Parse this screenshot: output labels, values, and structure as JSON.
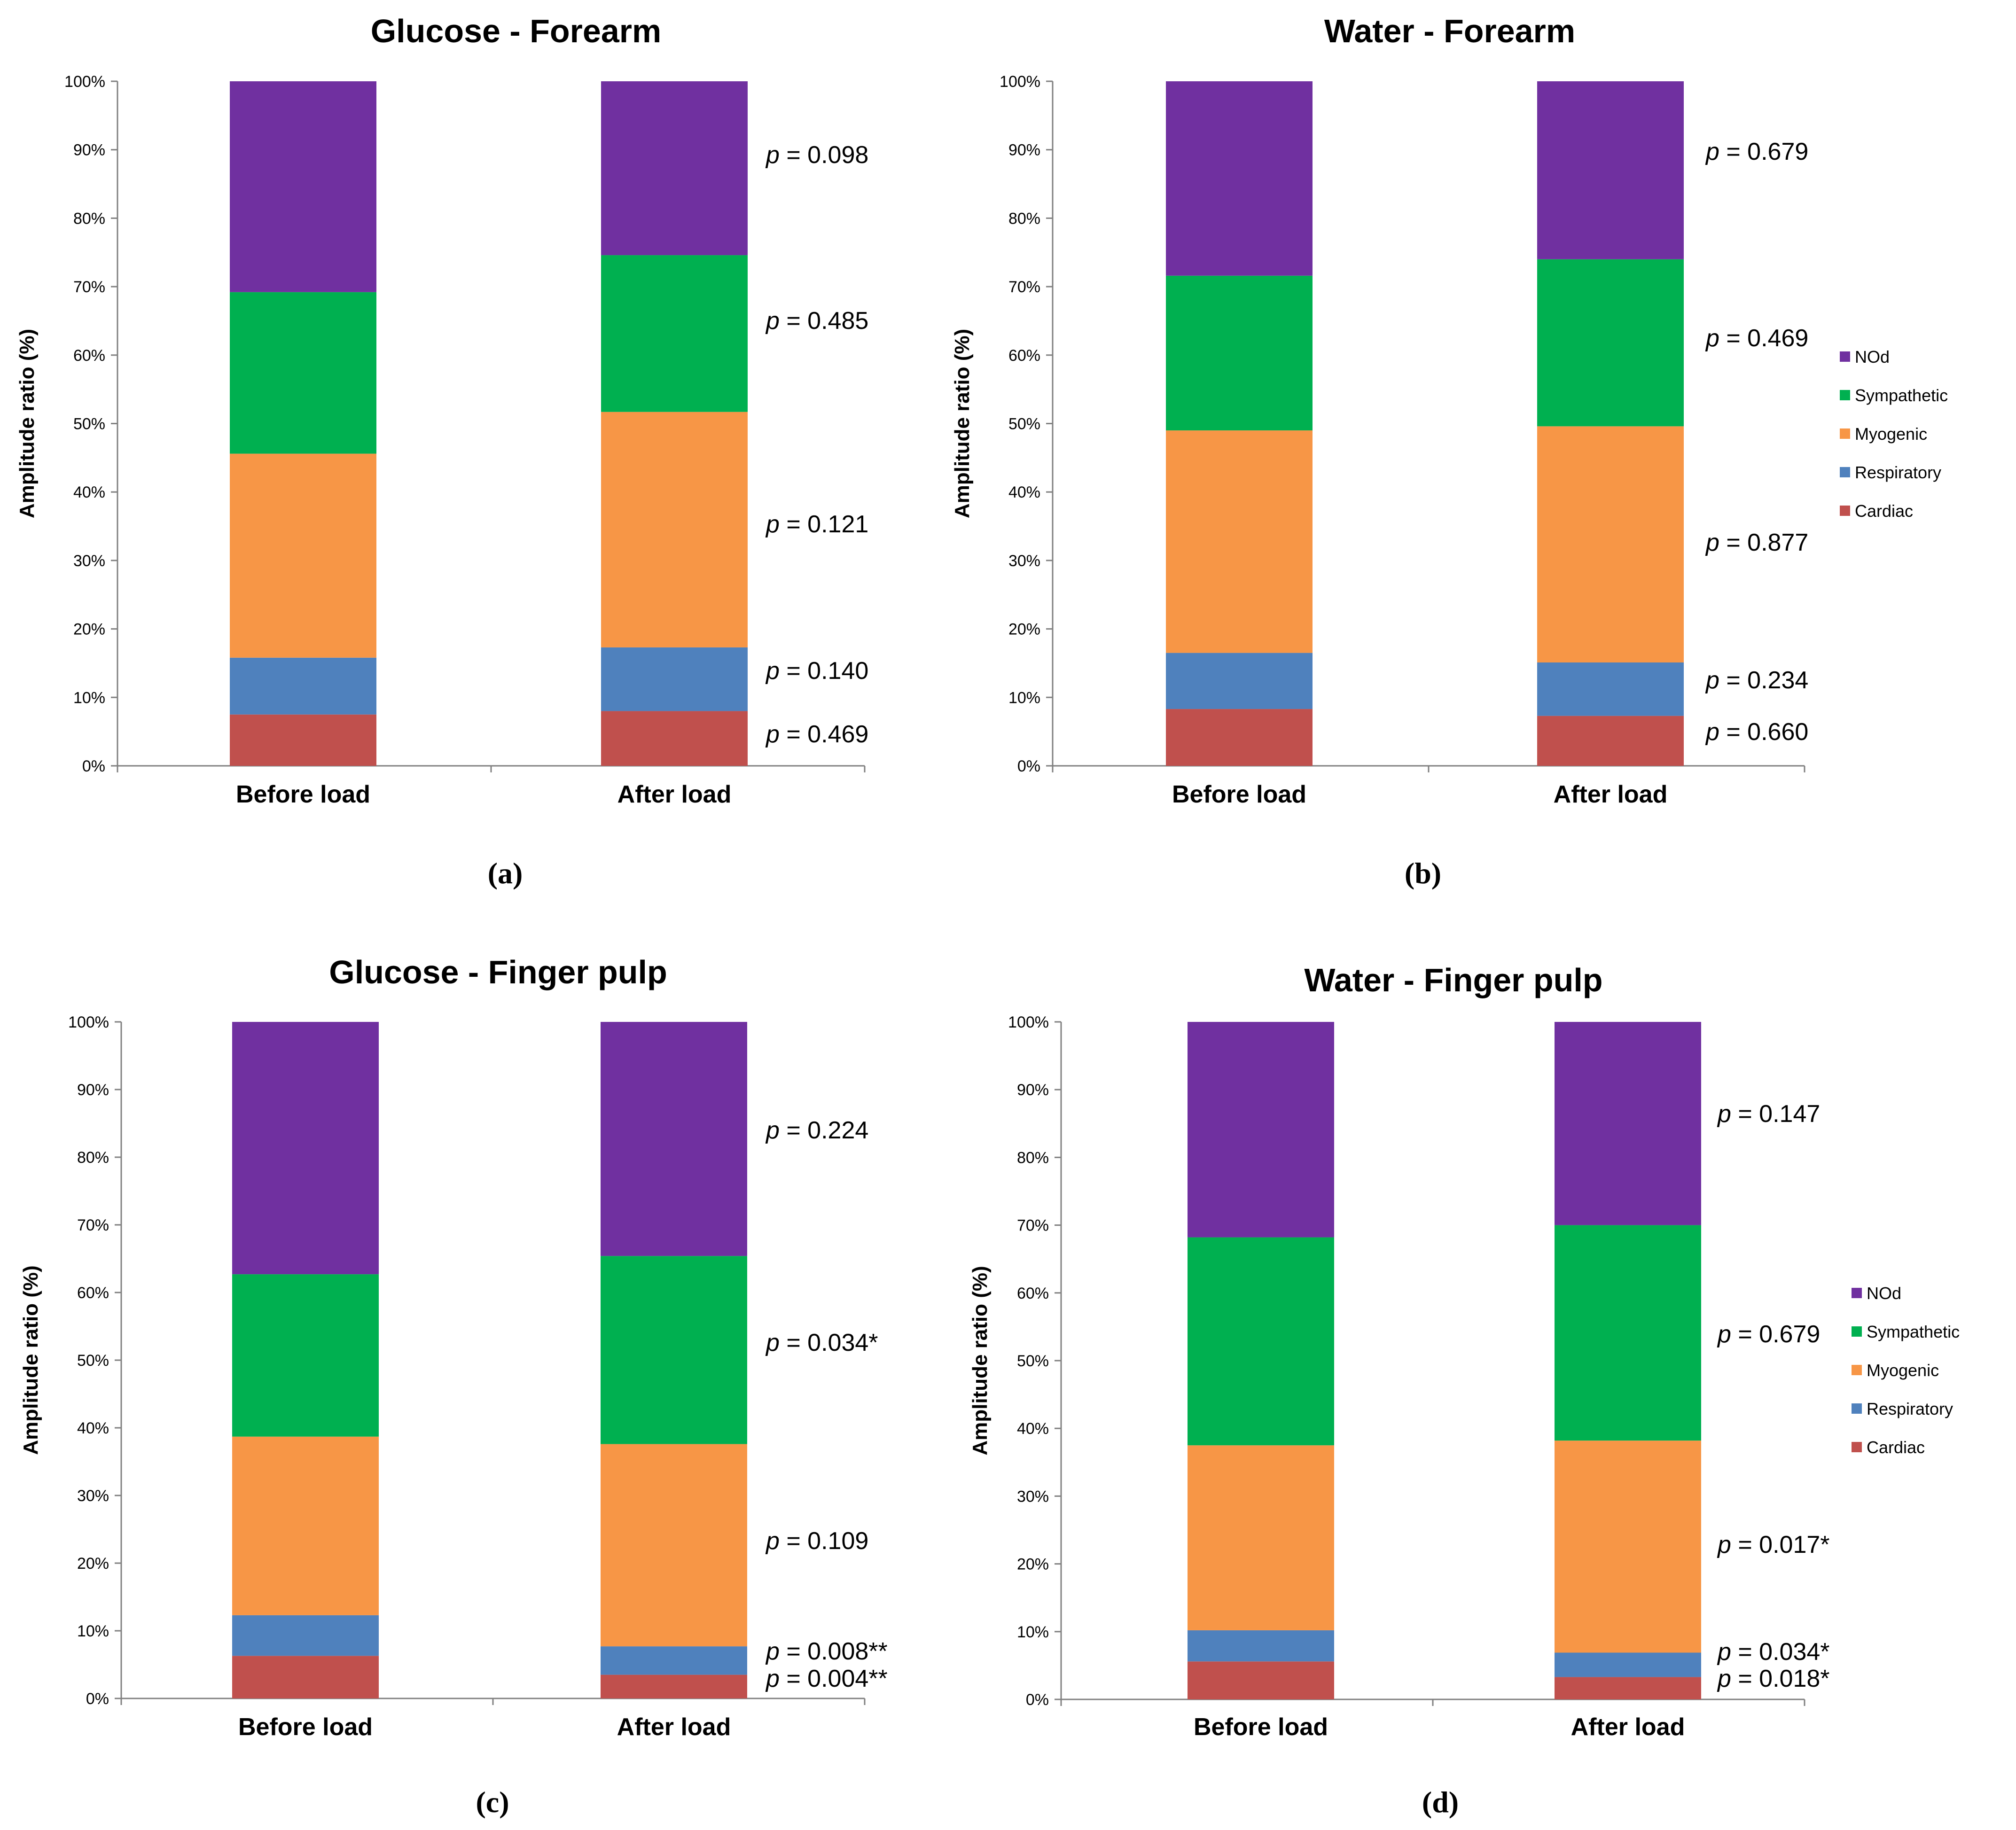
{
  "figure": {
    "legend": [
      "NOd",
      "Sympathetic",
      "Myogenic",
      "Respiratory",
      "Cardiac"
    ],
    "colors": {
      "Cardiac": "#c0504d",
      "Respiratory": "#4f81bd",
      "Myogenic": "#f79646",
      "Sympathetic": "#00b050",
      "NOd": "#7030a0"
    }
  },
  "chart_data": [
    {
      "type": "bar",
      "stacked": true,
      "panel_label": "(a)",
      "title": "Glucose - Forearm",
      "ylabel": "Amplitude ratio (%)",
      "xlabel": "",
      "ylim": [
        0,
        100
      ],
      "yticks": [
        "0%",
        "10%",
        "20%",
        "30%",
        "40%",
        "50%",
        "60%",
        "70%",
        "80%",
        "90%",
        "100%"
      ],
      "categories": [
        "Before load",
        "After load"
      ],
      "series": [
        {
          "name": "Cardiac",
          "values": [
            7.5,
            8.0
          ]
        },
        {
          "name": "Respiratory",
          "values": [
            8.3,
            9.3
          ]
        },
        {
          "name": "Myogenic",
          "values": [
            29.8,
            34.4
          ]
        },
        {
          "name": "Sympathetic",
          "values": [
            23.6,
            22.9
          ]
        },
        {
          "name": "NOd",
          "values": [
            30.8,
            25.4
          ]
        }
      ],
      "annotations": [
        {
          "p": "p",
          "text": " = 0.098",
          "series": "NOd"
        },
        {
          "p": "p",
          "text": " = 0.485",
          "series": "Sympathetic"
        },
        {
          "p": "p",
          "text": " = 0.121",
          "series": "Myogenic"
        },
        {
          "p": "p",
          "text": " = 0.140",
          "series": "Respiratory"
        },
        {
          "p": "p",
          "text": " = 0.469",
          "series": "Cardiac"
        }
      ],
      "legend": false
    },
    {
      "type": "bar",
      "stacked": true,
      "panel_label": "(b)",
      "title": "Water - Forearm",
      "ylabel": "Amplitude ratio (%)",
      "xlabel": "",
      "ylim": [
        0,
        100
      ],
      "yticks": [
        "0%",
        "10%",
        "20%",
        "30%",
        "40%",
        "50%",
        "60%",
        "70%",
        "80%",
        "90%",
        "100%"
      ],
      "categories": [
        "Before load",
        "After load"
      ],
      "series": [
        {
          "name": "Cardiac",
          "values": [
            8.3,
            7.3
          ]
        },
        {
          "name": "Respiratory",
          "values": [
            8.2,
            7.8
          ]
        },
        {
          "name": "Myogenic",
          "values": [
            32.5,
            34.5
          ]
        },
        {
          "name": "Sympathetic",
          "values": [
            22.6,
            24.4
          ]
        },
        {
          "name": "NOd",
          "values": [
            28.4,
            26.0
          ]
        }
      ],
      "annotations": [
        {
          "p": "p",
          "text": " = 0.679",
          "series": "NOd"
        },
        {
          "p": "p",
          "text": " = 0.469",
          "series": "Sympathetic"
        },
        {
          "p": "p",
          "text": " = 0.877",
          "series": "Myogenic"
        },
        {
          "p": "p",
          "text": " = 0.234",
          "series": "Respiratory"
        },
        {
          "p": "p",
          "text": " = 0.660",
          "series": "Cardiac"
        }
      ],
      "legend": true
    },
    {
      "type": "bar",
      "stacked": true,
      "panel_label": "(c)",
      "title": "Glucose - Finger pulp",
      "ylabel": "Amplitude ratio (%)",
      "xlabel": "",
      "ylim": [
        0,
        100
      ],
      "yticks": [
        "0%",
        "10%",
        "20%",
        "30%",
        "40%",
        "50%",
        "60%",
        "70%",
        "80%",
        "90%",
        "100%"
      ],
      "categories": [
        "Before load",
        "After load"
      ],
      "series": [
        {
          "name": "Cardiac",
          "values": [
            6.3,
            3.5
          ]
        },
        {
          "name": "Respiratory",
          "values": [
            6.0,
            4.2
          ]
        },
        {
          "name": "Myogenic",
          "values": [
            26.4,
            29.9
          ]
        },
        {
          "name": "Sympathetic",
          "values": [
            24.0,
            27.8
          ]
        },
        {
          "name": "NOd",
          "values": [
            37.3,
            34.6
          ]
        }
      ],
      "annotations": [
        {
          "p": "p",
          "text": " = 0.224",
          "series": "NOd"
        },
        {
          "p": "p",
          "text": " = 0.034*",
          "series": "Sympathetic"
        },
        {
          "p": "p",
          "text": " = 0.109",
          "series": "Myogenic"
        },
        {
          "p": "p",
          "text": " = 0.008**",
          "series": "Respiratory"
        },
        {
          "p": "p",
          "text": " = 0.004**",
          "series": "Cardiac"
        }
      ],
      "legend": false
    },
    {
      "type": "bar",
      "stacked": true,
      "panel_label": "(d)",
      "title": "Water - Finger pulp",
      "ylabel": "Amplitude ratio (%)",
      "xlabel": "",
      "ylim": [
        0,
        100
      ],
      "yticks": [
        "0%",
        "10%",
        "20%",
        "30%",
        "40%",
        "50%",
        "60%",
        "70%",
        "80%",
        "90%",
        "100%"
      ],
      "categories": [
        "Before load",
        "After load"
      ],
      "series": [
        {
          "name": "Cardiac",
          "values": [
            5.6,
            3.3
          ]
        },
        {
          "name": "Respiratory",
          "values": [
            4.6,
            3.6
          ]
        },
        {
          "name": "Myogenic",
          "values": [
            27.3,
            31.3
          ]
        },
        {
          "name": "Sympathetic",
          "values": [
            30.7,
            31.8
          ]
        },
        {
          "name": "NOd",
          "values": [
            31.8,
            30.0
          ]
        }
      ],
      "annotations": [
        {
          "p": "p",
          "text": " = 0.147",
          "series": "NOd"
        },
        {
          "p": "p",
          "text": " = 0.679",
          "series": "Sympathetic"
        },
        {
          "p": "p",
          "text": " = 0.017*",
          "series": "Myogenic"
        },
        {
          "p": "p",
          "text": " = 0.034*",
          "series": "Respiratory"
        },
        {
          "p": "p",
          "text": " = 0.018*",
          "series": "Cardiac"
        }
      ],
      "legend": true
    }
  ]
}
